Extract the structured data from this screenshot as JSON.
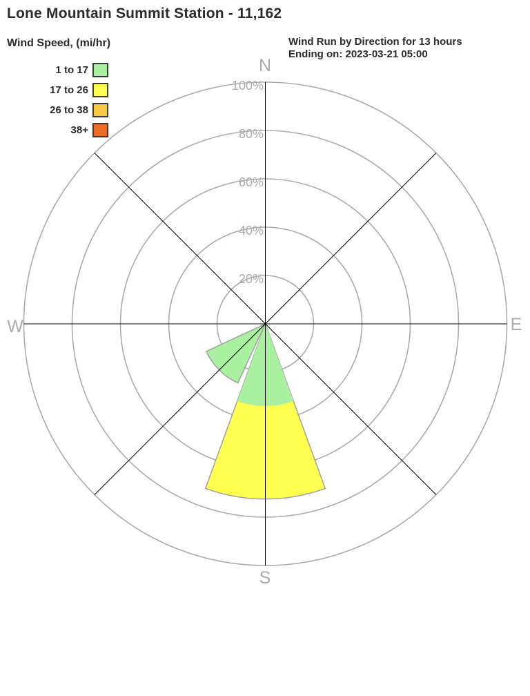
{
  "title": "Lone Mountain Summit Station - 11,162",
  "legend": {
    "heading": "Wind Speed, (mi/hr)"
  },
  "subtitle": {
    "line1": "Wind Run by Direction for 13 hours",
    "line2": "Ending on: 2023-03-21 05:00"
  },
  "chart_data": {
    "type": "windrose",
    "title": "Wind Run by Direction for 13 hours Ending on: 2023-03-21 05:00",
    "station": "Lone Mountain Summit Station - 11,162",
    "units": "percent of wind run",
    "ring_ticks_percent": [
      20,
      40,
      60,
      80,
      100
    ],
    "direction_labels": [
      "N",
      "E",
      "S",
      "W"
    ],
    "sector_width_deg": 40,
    "speed_bins": [
      {
        "label": "1 to 17",
        "color": "#A9F0A0"
      },
      {
        "label": "17 to 26",
        "color": "#FFFF50"
      },
      {
        "label": "26 to 38",
        "color": "#F5CB45"
      },
      {
        "label": "38+",
        "color": "#EB6D28"
      }
    ],
    "petals": [
      {
        "direction": "S",
        "angle_deg": 180,
        "segments_percent": [
          34,
          38.5,
          0,
          0
        ],
        "total_percent": 72.5
      },
      {
        "direction": "SW",
        "angle_deg": 225,
        "segments_percent": [
          27,
          0,
          0,
          0
        ],
        "total_percent": 27
      }
    ],
    "grid": {
      "color": "#ABABAB",
      "axis_line_color": "#000000",
      "petal_outline_color": "#A0A0A0"
    }
  }
}
